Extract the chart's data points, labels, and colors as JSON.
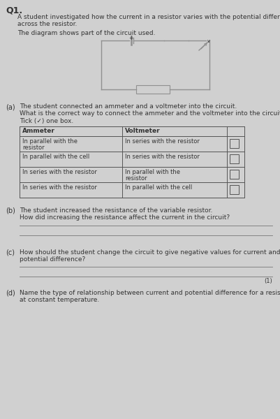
{
  "bg_color": "#d0d0d0",
  "title_q": "Q1.",
  "intro_line1": "A student investigated how the current in a resistor varies with the potential difference",
  "intro_line2": "across the resistor.",
  "diagram_line": "The diagram shows part of the circuit used.",
  "part_a_label": "(a)",
  "part_a_text1": "The student connected an ammeter and a voltmeter into the circuit.",
  "part_a_text2": "What is the correct way to connect the ammeter and the voltmeter into the circuit?",
  "tick_label": "Tick (✓) one box.",
  "table_headers": [
    "Ammeter",
    "Voltmeter"
  ],
  "table_rows": [
    [
      "In parallel with the\nresistor",
      "In series with the resistor"
    ],
    [
      "In parallel with the cell",
      "In series with the resistor"
    ],
    [
      "In series with the resistor",
      "In parallel with the\nresistor"
    ],
    [
      "In series with the resistor",
      "In parallel with the cell"
    ]
  ],
  "part_b_label": "(b)",
  "part_b_text1": "The student increased the resistance of the variable resistor.",
  "part_b_text2": "How did increasing the resistance affect the current in the circuit?",
  "part_c_label": "(c)",
  "part_c_line1": "How should the student change the circuit to give negative values for current and",
  "part_c_line2": "potential difference?",
  "part_d_label": "(d)",
  "part_d_line1": "Name the type of relationship between current and potential difference for a resistor",
  "part_d_line2": "at constant temperature.",
  "mark_c": "(1)",
  "font_size_body": 6.5,
  "font_size_label": 7.0,
  "font_size_q": 9.0,
  "text_color": "#333333",
  "line_color": "#777777",
  "table_line_color": "#555555"
}
